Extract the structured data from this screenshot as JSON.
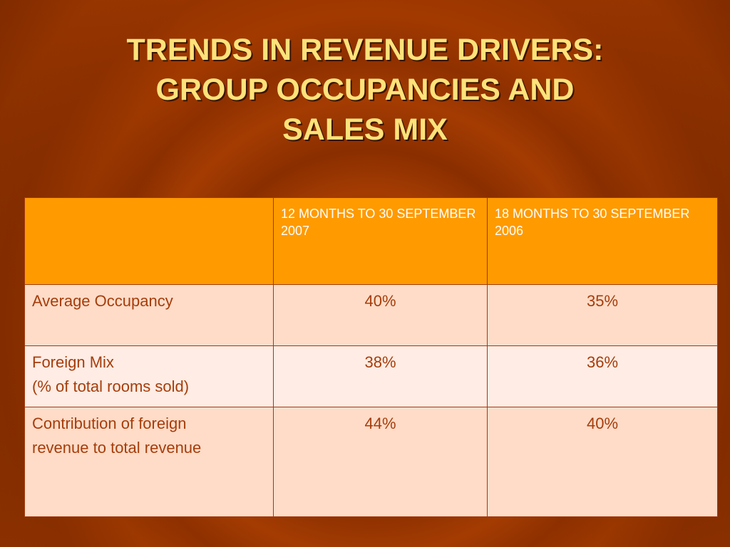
{
  "slide": {
    "title_lines": [
      "TRENDS IN REVENUE DRIVERS:",
      "GROUP OCCUPANCIES AND",
      "SALES MIX"
    ]
  },
  "table": {
    "headers": [
      "",
      "12 MONTHS TO 30 SEPTEMBER 2007",
      "18 MONTHS TO 30 SEPTEMBER 2006"
    ],
    "rows": [
      {
        "label_lines": [
          "Average Occupancy"
        ],
        "values": [
          "40%",
          "35%"
        ]
      },
      {
        "label_lines": [
          "Foreign Mix",
          "(% of total rooms sold)"
        ],
        "values": [
          "38%",
          "36%"
        ]
      },
      {
        "label_lines": [
          "Contribution of foreign",
          "revenue to total revenue"
        ],
        "values": [
          "44%",
          "40%"
        ]
      }
    ]
  },
  "colors": {
    "background": "#a23a00",
    "title": "#ffe27a",
    "header_fill": "#ff9a00",
    "row_fill_a": "#ffdcc8",
    "row_fill_b": "#ffece4",
    "cell_text": "#a63d0a"
  }
}
